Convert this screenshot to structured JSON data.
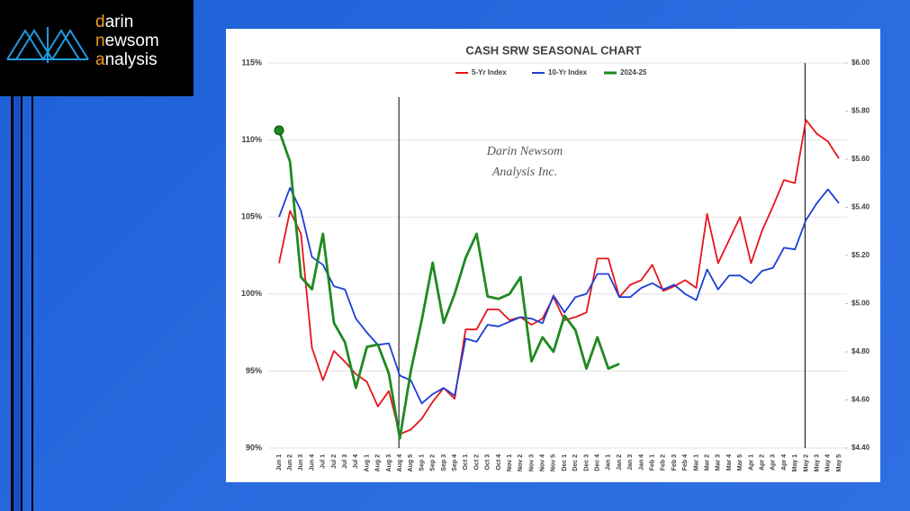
{
  "logo": {
    "lines": [
      "darin",
      "newsom",
      "analysis"
    ]
  },
  "chart_data": {
    "type": "line",
    "title": "CASH SRW SEASONAL CHART",
    "annotation": [
      "Darin Newsom",
      "Analysis Inc."
    ],
    "categories": [
      "Jun 1",
      "Jun 2",
      "Jun 3",
      "Jun 4",
      "Jul 1",
      "Jul 2",
      "Jul 3",
      "Jul 4",
      "Aug 1",
      "Aug 2",
      "Aug 3",
      "Aug 4",
      "Aug 5",
      "Sep 1",
      "Sep 2",
      "Sep 3",
      "Sep 4",
      "Oct 1",
      "Oct 2",
      "Oct 3",
      "Oct 4",
      "Nov 1",
      "Nov 2",
      "Nov 3",
      "Nov 4",
      "Nov 5",
      "Dec 1",
      "Dec 2",
      "Dec 3",
      "Dec 4",
      "Jan 1",
      "Jan 2",
      "Jan 3",
      "Jan 4",
      "Feb 1",
      "Feb 2",
      "Feb 3",
      "Feb 4",
      "Mar 1",
      "Mar 2",
      "Mar 3",
      "Mar 4",
      "Mar 5",
      "Apr 1",
      "Apr 2",
      "Apr 3",
      "Apr 4",
      "May 1",
      "May 2",
      "May 3",
      "May 4",
      "May 5"
    ],
    "series": [
      {
        "name": "5-Yr Index",
        "color": "#e8141b",
        "values": [
          102.0,
          105.4,
          103.9,
          96.5,
          94.4,
          96.3,
          95.6,
          94.8,
          94.3,
          92.7,
          93.7,
          90.9,
          91.2,
          91.9,
          93.0,
          93.9,
          93.2,
          97.7,
          97.7,
          99.0,
          99.0,
          98.3,
          98.5,
          98.0,
          98.4,
          99.8,
          98.3,
          98.5,
          98.8,
          102.3,
          102.3,
          99.8,
          100.6,
          100.9,
          101.9,
          100.2,
          100.5,
          100.9,
          100.4,
          105.2,
          102.0,
          103.5,
          105.0,
          102.0,
          104.1,
          105.7,
          107.4,
          107.2,
          111.3,
          110.4,
          109.9,
          108.8
        ]
      },
      {
        "name": "10-Yr Index",
        "color": "#1c3fd6",
        "values": [
          105.0,
          106.9,
          105.4,
          102.4,
          101.9,
          100.5,
          100.3,
          98.4,
          97.5,
          96.7,
          96.8,
          94.7,
          94.4,
          92.9,
          93.5,
          93.9,
          93.4,
          97.1,
          96.9,
          98.0,
          97.9,
          98.2,
          98.5,
          98.4,
          98.1,
          99.9,
          98.8,
          99.8,
          100.0,
          101.3,
          101.3,
          99.8,
          99.8,
          100.4,
          100.7,
          100.3,
          100.6,
          100.0,
          99.6,
          101.6,
          100.3,
          101.2,
          101.2,
          100.7,
          101.5,
          101.7,
          103.0,
          102.9,
          104.8,
          105.9,
          106.8,
          105.9
        ]
      },
      {
        "name": "2024-25",
        "color": "#1f8a1f",
        "axis": "y2",
        "values": [
          5.72,
          5.59,
          5.11,
          5.06,
          5.29,
          4.92,
          4.84,
          4.65,
          4.82,
          4.83,
          4.71,
          4.44,
          4.72,
          4.93,
          5.17,
          4.92,
          5.04,
          5.19,
          5.29,
          5.03,
          5.02,
          5.04,
          5.11,
          4.76,
          4.86,
          4.8,
          4.95,
          4.89,
          4.73,
          4.86,
          4.73,
          4.75,
          null,
          null,
          null,
          null,
          null,
          null,
          null,
          null,
          null,
          null,
          null,
          null,
          null,
          null,
          null,
          null,
          null,
          null,
          null,
          null
        ]
      }
    ],
    "ylim": [
      90,
      115
    ],
    "yticks": [
      {
        "value": 90,
        "label": "90%"
      },
      {
        "value": 95,
        "label": "95%"
      },
      {
        "value": 100,
        "label": "100%"
      },
      {
        "value": 105,
        "label": "105%"
      },
      {
        "value": 110,
        "label": "110%"
      },
      {
        "value": 115,
        "label": "115%"
      }
    ],
    "y2lim": [
      4.4,
      6.0
    ],
    "y2ticks": [
      {
        "value": 4.4,
        "label": "$4.40"
      },
      {
        "value": 4.6,
        "label": "$4.60"
      },
      {
        "value": 4.8,
        "label": "$4.80"
      },
      {
        "value": 5.0,
        "label": "$5.00"
      },
      {
        "value": 5.2,
        "label": "$5.20"
      },
      {
        "value": 5.4,
        "label": "$5.40"
      },
      {
        "value": 5.6,
        "label": "$5.60"
      },
      {
        "value": 5.8,
        "label": "$5.80"
      },
      {
        "value": 6.0,
        "label": "$6.00"
      }
    ],
    "grid": true
  }
}
